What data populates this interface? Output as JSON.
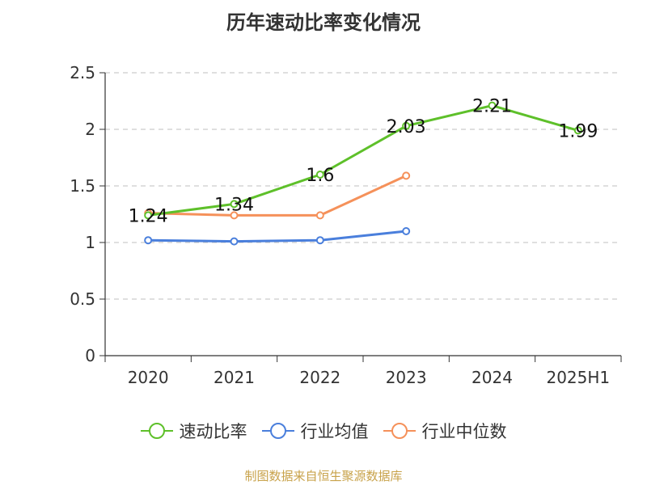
{
  "chart_data": {
    "type": "line",
    "title": "历年速动比率变化情况",
    "categories": [
      "2020",
      "2021",
      "2022",
      "2023",
      "2024",
      "2025H1"
    ],
    "ylim": [
      0,
      2.5
    ],
    "yticks": [
      "0",
      "0.5",
      "1",
      "1.5",
      "2",
      "2.5"
    ],
    "grid": true,
    "legend_position": "bottom",
    "series": [
      {
        "name": "速动比率",
        "color": "#5ec02a",
        "values": [
          1.24,
          1.34,
          1.6,
          2.03,
          2.21,
          1.99
        ],
        "labels": [
          "1.24",
          "1.34",
          "1.6",
          "2.03",
          "2.21",
          "1.99"
        ]
      },
      {
        "name": "行业均值",
        "color": "#4a7fdc",
        "values": [
          1.02,
          1.01,
          1.02,
          1.1,
          null,
          null
        ]
      },
      {
        "name": "行业中位数",
        "color": "#f5915a",
        "values": [
          1.26,
          1.24,
          1.24,
          1.59,
          null,
          null
        ]
      }
    ]
  },
  "footer": "制图数据来自恒生聚源数据库"
}
